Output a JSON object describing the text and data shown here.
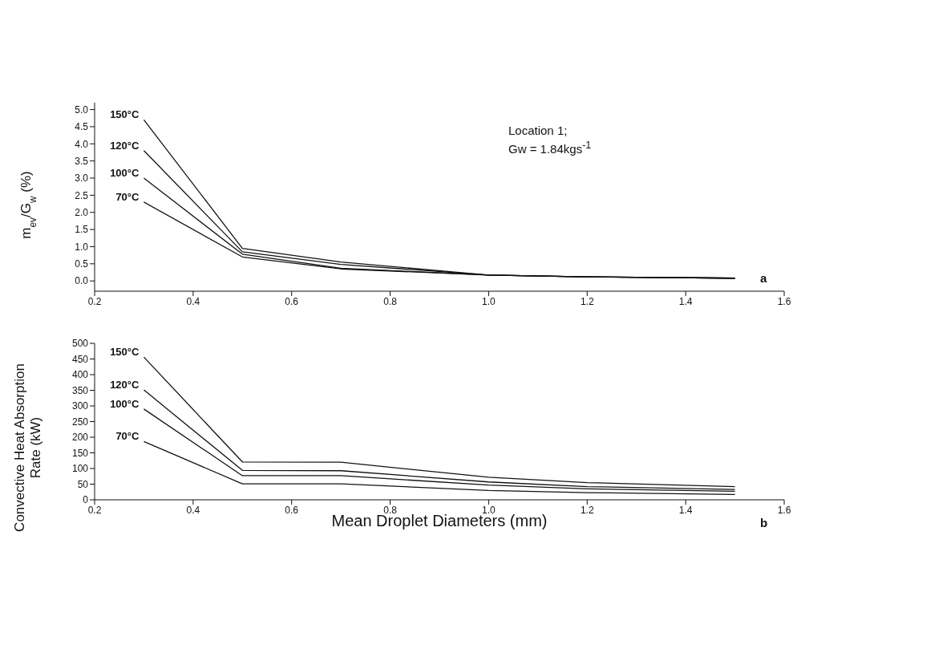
{
  "chart_data": [
    {
      "type": "line",
      "ylabel": "m$_{ev}$/G$_{w}$ (%)",
      "annotations": [
        "Location 1;",
        "Gw = 1.84kgs$^{-1}$",
        "a"
      ],
      "x": [
        0.3,
        0.5,
        0.7,
        1.0,
        1.2,
        1.5
      ],
      "series": [
        {
          "name": "150°C",
          "color": "#111111",
          "values": [
            4.7,
            0.95,
            0.55,
            0.17,
            0.12,
            0.08
          ]
        },
        {
          "name": "120°C",
          "color": "#111111",
          "values": [
            3.8,
            0.85,
            0.48,
            0.17,
            0.12,
            0.08
          ]
        },
        {
          "name": "100°C",
          "color": "#111111",
          "values": [
            3.0,
            0.78,
            0.37,
            0.17,
            0.12,
            0.08
          ]
        },
        {
          "name": "70°C",
          "color": "#111111",
          "values": [
            2.3,
            0.7,
            0.35,
            0.17,
            0.12,
            0.08
          ]
        }
      ],
      "xlim": [
        0.2,
        1.6
      ],
      "xticks": [
        0.2,
        0.4,
        0.6,
        0.8,
        {
          "value": 1,
          "label": "1.0"
        },
        1.2,
        1.4,
        1.6
      ],
      "ylim": [
        -0.3,
        5.2
      ],
      "yticks": [
        {
          "value": 0,
          "label": "0.0"
        },
        0.5,
        {
          "value": 1,
          "label": "1.0"
        },
        1.5,
        {
          "value": 2,
          "label": "2.0"
        },
        2.5,
        {
          "value": 3,
          "label": "3.0"
        },
        3.5,
        {
          "value": 4,
          "label": "4.0"
        },
        4.5,
        {
          "value": 5,
          "label": "5.0"
        }
      ],
      "grid": false,
      "legend": false,
      "marker": "none",
      "line_style": "solid"
    },
    {
      "type": "line",
      "xlabel": "Mean Droplet Diameters (mm)",
      "ylabel": "Convective Heat Absorption Rate (kW)",
      "annotations": [
        "b"
      ],
      "x": [
        0.3,
        0.5,
        0.7,
        1.0,
        1.2,
        1.5
      ],
      "series": [
        {
          "name": "150°C",
          "color": "#111111",
          "values": [
            456,
            121,
            120,
            72,
            55,
            42
          ]
        },
        {
          "name": "120°C",
          "color": "#111111",
          "values": [
            351,
            94,
            93,
            57,
            42,
            33
          ]
        },
        {
          "name": "100°C",
          "color": "#111111",
          "values": [
            290,
            77,
            77,
            47,
            35,
            27
          ]
        },
        {
          "name": "70°C",
          "color": "#111111",
          "values": [
            186,
            51,
            51,
            30,
            23,
            17
          ]
        }
      ],
      "xlim": [
        0.2,
        1.6
      ],
      "xticks": [
        0.2,
        0.4,
        0.6,
        0.8,
        {
          "value": 1,
          "label": "1.0"
        },
        1.2,
        1.4,
        1.6
      ],
      "ylim": [
        0,
        500
      ],
      "yticks": [
        0,
        50,
        100,
        150,
        200,
        250,
        300,
        350,
        400,
        450,
        500
      ],
      "grid": false,
      "legend": false,
      "marker": "none",
      "line_style": "solid"
    }
  ]
}
